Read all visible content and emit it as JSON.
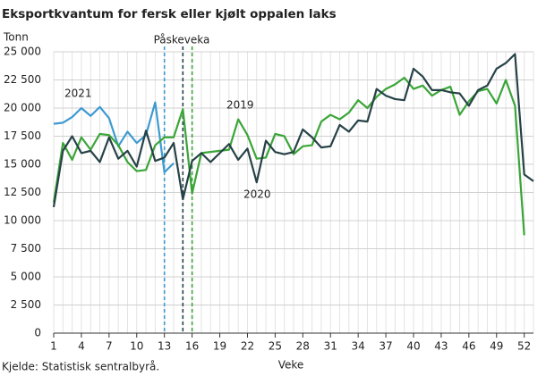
{
  "chart_data": {
    "type": "line",
    "title": "Eksportkvantum for fersk eller kjølt oppalen laks",
    "y_label": "Tonn",
    "x_label": "Veke",
    "source": "Kjelde: Statistisk sentralbyrå.",
    "annotation": "Påskeveka",
    "x": [
      1,
      2,
      3,
      4,
      5,
      6,
      7,
      8,
      9,
      10,
      11,
      12,
      13,
      14,
      15,
      16,
      17,
      18,
      19,
      20,
      21,
      22,
      23,
      24,
      25,
      26,
      27,
      28,
      29,
      30,
      31,
      32,
      33,
      34,
      35,
      36,
      37,
      38,
      39,
      40,
      41,
      42,
      43,
      44,
      45,
      46,
      47,
      48,
      49,
      50,
      51,
      52,
      53
    ],
    "series": [
      {
        "name": "2021",
        "color": "#3d9ad1",
        "values": [
          18600,
          18700,
          19200,
          20000,
          19300,
          20100,
          19100,
          16600,
          17900,
          16900,
          17600,
          20500,
          14300,
          15100,
          null,
          null,
          null,
          null,
          null,
          null,
          null,
          null,
          null,
          null,
          null,
          null,
          null,
          null,
          null,
          null,
          null,
          null,
          null,
          null,
          null,
          null,
          null,
          null,
          null,
          null,
          null,
          null,
          null,
          null,
          null,
          null,
          null,
          null,
          null,
          null,
          null,
          null,
          null
        ]
      },
      {
        "name": "2019",
        "color": "#3aa537",
        "values": [
          11600,
          16900,
          15400,
          17400,
          16300,
          17700,
          17600,
          16700,
          15200,
          14400,
          14500,
          16700,
          17400,
          17400,
          19900,
          12400,
          16000,
          16100,
          16200,
          16300,
          19000,
          17600,
          15500,
          15600,
          17700,
          17500,
          15900,
          16600,
          16700,
          18800,
          19400,
          19000,
          19600,
          20700,
          20000,
          21000,
          21700,
          22100,
          22700,
          21700,
          22000,
          21100,
          21600,
          21900,
          19400,
          20600,
          21500,
          21700,
          20400,
          22500,
          20200,
          8700,
          null
        ]
      },
      {
        "name": "2020",
        "color": "#274247",
        "values": [
          11200,
          16200,
          17500,
          16000,
          16200,
          15200,
          17400,
          15500,
          16200,
          14800,
          18000,
          15300,
          15600,
          16900,
          11900,
          15300,
          16000,
          15200,
          16000,
          16800,
          15400,
          16400,
          13400,
          17100,
          16100,
          15900,
          16100,
          18100,
          17400,
          16500,
          16600,
          18500,
          17900,
          18900,
          18800,
          21700,
          21100,
          20800,
          20700,
          23500,
          22800,
          21600,
          21600,
          21400,
          21300,
          20200,
          21600,
          22000,
          23500,
          24000,
          24800,
          14100,
          13500
        ]
      }
    ],
    "reference_lines": [
      {
        "x": 13,
        "color": "#3d9ad1"
      },
      {
        "x": 15,
        "color": "#274247"
      },
      {
        "x": 16,
        "color": "#3aa537"
      }
    ],
    "xlim": [
      1,
      53
    ],
    "xticks": [
      1,
      4,
      7,
      10,
      13,
      16,
      19,
      22,
      25,
      28,
      31,
      34,
      37,
      40,
      43,
      46,
      49,
      52
    ],
    "ylim": [
      0,
      25000
    ],
    "yticks": [
      0,
      {
        "value": 2500,
        "label": "2 500"
      },
      {
        "value": 5000,
        "label": "5 000"
      },
      {
        "value": 7500,
        "label": "7 500"
      },
      {
        "value": 10000,
        "label": "10 000"
      },
      {
        "value": 12500,
        "label": "12 500"
      },
      {
        "value": 15000,
        "label": "15 000"
      },
      {
        "value": 17500,
        "label": "17 500"
      },
      {
        "value": 20000,
        "label": "20 000"
      },
      {
        "value": 22500,
        "label": "22 500"
      },
      {
        "value": 25000,
        "label": "25 000"
      }
    ],
    "grid": true
  }
}
